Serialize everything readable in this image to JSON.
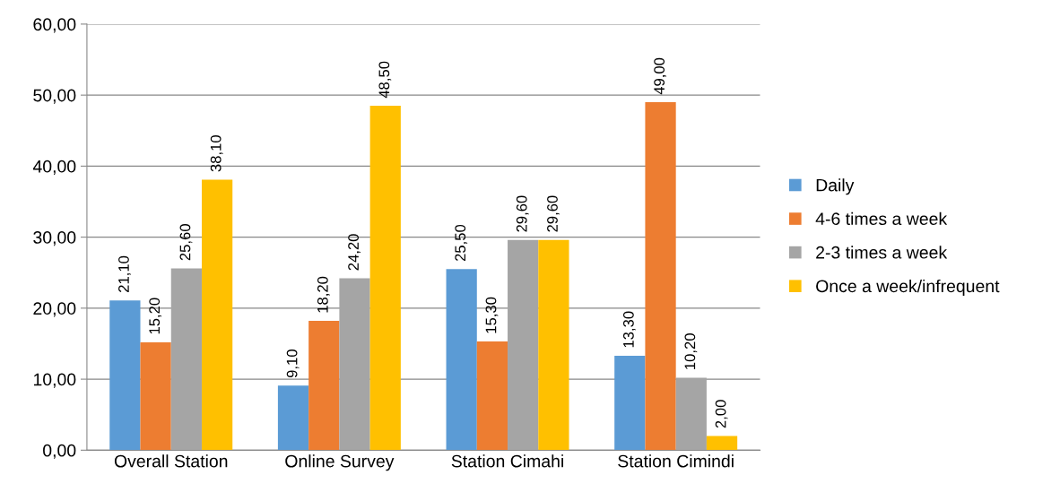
{
  "chart_data": {
    "type": "bar",
    "categories": [
      "Overall Station",
      "Online Survey",
      "Station Cimahi",
      "Station Cimindi"
    ],
    "series": [
      {
        "name": "Daily",
        "color": "#5b9bd5",
        "values": [
          21.1,
          9.1,
          25.5,
          13.3
        ],
        "value_labels": [
          "21,10",
          "9,10",
          "25,50",
          "13,30"
        ]
      },
      {
        "name": "4-6 times a week",
        "color": "#ed7d31",
        "values": [
          15.2,
          18.2,
          15.3,
          49.0
        ],
        "value_labels": [
          "15,20",
          "18,20",
          "15,30",
          "49,00"
        ]
      },
      {
        "name": "2-3 times a week",
        "color": "#a5a5a5",
        "values": [
          25.6,
          24.2,
          29.6,
          10.2
        ],
        "value_labels": [
          "25,60",
          "24,20",
          "29,60",
          "10,20"
        ]
      },
      {
        "name": "Once a week/infrequent",
        "color": "#ffc000",
        "values": [
          38.1,
          48.5,
          29.6,
          2.0
        ],
        "value_labels": [
          "38,10",
          "48,50",
          "29,60",
          "2,00"
        ]
      }
    ],
    "ylim": [
      0,
      60
    ],
    "yticks": [
      {
        "value": 0,
        "label": "0,00"
      },
      {
        "value": 10,
        "label": "10,00"
      },
      {
        "value": 20,
        "label": "20,00"
      },
      {
        "value": 30,
        "label": "30,00"
      },
      {
        "value": 40,
        "label": "40,00"
      },
      {
        "value": 50,
        "label": "50,00"
      },
      {
        "value": 60,
        "label": "60,00"
      }
    ],
    "grid": "y",
    "legend": "right"
  }
}
